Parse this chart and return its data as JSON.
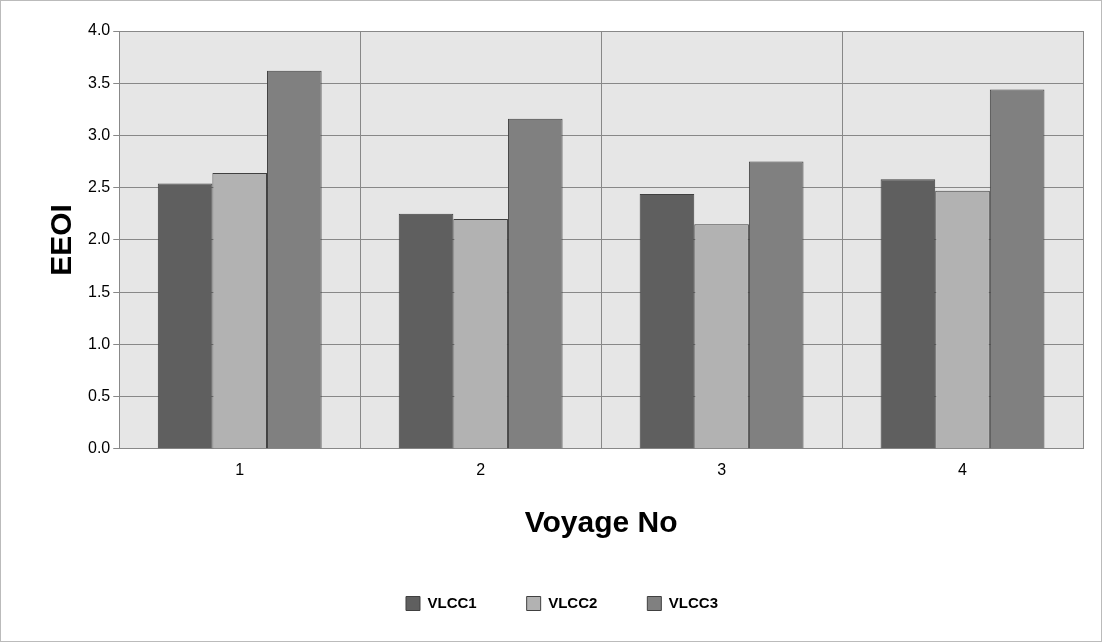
{
  "chart_data": {
    "type": "bar",
    "xlabel": "Voyage No",
    "ylabel": "EEOI",
    "categories": [
      "1",
      "2",
      "3",
      "4"
    ],
    "series": [
      {
        "name": "VLCC1",
        "color": "#5f5f5f",
        "values": [
          2.54,
          2.25,
          2.44,
          2.58
        ]
      },
      {
        "name": "VLCC2",
        "color": "#b2b2b2",
        "values": [
          2.64,
          2.2,
          2.15,
          2.47
        ]
      },
      {
        "name": "VLCC3",
        "color": "#808080",
        "values": [
          3.62,
          3.16,
          2.75,
          3.44
        ]
      }
    ],
    "ylim": [
      0,
      4
    ],
    "yticks": [
      {
        "value": 0,
        "label": "0.0"
      },
      {
        "value": 0.5,
        "label": "0.5"
      },
      {
        "value": 1,
        "label": "1.0"
      },
      {
        "value": 1.5,
        "label": "1.5"
      },
      {
        "value": 2,
        "label": "2.0"
      },
      {
        "value": 2.5,
        "label": "2.5"
      },
      {
        "value": 3,
        "label": "3.0"
      },
      {
        "value": 3.5,
        "label": "3.5"
      },
      {
        "value": 4,
        "label": "4.0"
      }
    ],
    "grid": true,
    "legend": "bottom"
  }
}
